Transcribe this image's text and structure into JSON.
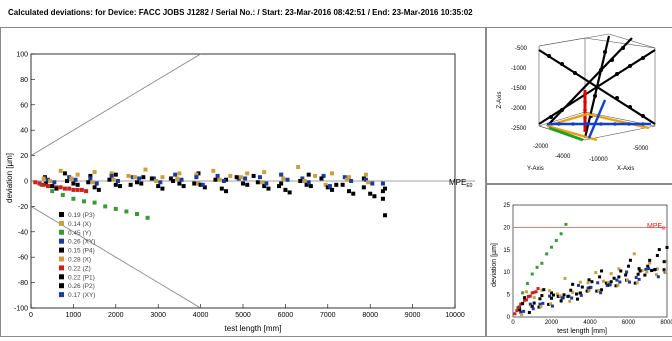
{
  "header": {
    "text": "Calculated deviations:  for Device:  FACC JOBS J1282 / Serial No.:  / Start:  23-Mar-2016 08:42:51 / End:  23-Mar-2016 10:35:02"
  },
  "chart_data": [
    {
      "type": "scatter",
      "xlabel": "test length [mm]",
      "ylabel": "deviation [µm]",
      "xlim": [
        0,
        10000
      ],
      "ylim": [
        -100,
        100
      ],
      "xticks": [
        0,
        1000,
        2000,
        3000,
        4000,
        5000,
        6000,
        7000,
        8000,
        9000,
        10000
      ],
      "yticks": [
        -100,
        -80,
        -60,
        -40,
        -20,
        0,
        20,
        40,
        60,
        80,
        100
      ],
      "grid": false,
      "legend_position": "bottom-left",
      "mpe_label": "MPE",
      "mpe_subscript": "E0",
      "mpe_lines": {
        "upper": {
          "x": [
            0,
            4000
          ],
          "y": [
            20,
            100
          ]
        },
        "lower": {
          "x": [
            0,
            4000
          ],
          "y": [
            -20,
            -100
          ]
        },
        "zero": {
          "y": 0
        }
      },
      "series": [
        {
          "name": "0.19 (P3)",
          "color": "#000000",
          "x": [
            330,
            800,
            1400,
            2000,
            2650,
            3300,
            3950,
            4600,
            5250,
            5900,
            6550,
            7200,
            7850,
            8350
          ],
          "y": [
            3,
            6,
            4,
            5,
            3,
            2,
            6,
            1,
            4,
            -2,
            5,
            -3,
            2,
            -6
          ]
        },
        {
          "name": "0.14 (X)",
          "color": "#c8a040",
          "x": [
            300,
            700,
            1100,
            1500,
            1900,
            2300,
            2700,
            3100,
            3500,
            3900,
            4300,
            4700,
            5100,
            5500,
            5900,
            6300,
            6700,
            7100,
            7500,
            7900
          ],
          "y": [
            2,
            8,
            5,
            7,
            6,
            4,
            9,
            3,
            6,
            5,
            8,
            4,
            6,
            7,
            5,
            11,
            4,
            6,
            3,
            5
          ]
        },
        {
          "name": "0.45 (Y)",
          "color": "#3a9a3a",
          "x": [
            250,
            500,
            750,
            1000,
            1250,
            1500,
            1750,
            2000,
            2250,
            2500,
            2750
          ],
          "y": [
            -3,
            -8,
            -11,
            -14,
            -16,
            -17,
            -20,
            -22,
            -24,
            -26,
            -29
          ]
        },
        {
          "name": "0.26 (XY)",
          "color": "#1a3aa0",
          "x": [
            400,
            900,
            1400,
            1900,
            2400,
            2900,
            3400,
            3900,
            4400,
            4900,
            5400,
            5900,
            6400,
            6900,
            7400,
            7900,
            8300
          ],
          "y": [
            1,
            3,
            2,
            4,
            3,
            2,
            5,
            3,
            4,
            2,
            3,
            5,
            2,
            4,
            3,
            1,
            -2
          ]
        },
        {
          "name": "0.15 (P4)",
          "color": "#000000",
          "x": [
            350,
            850,
            1350,
            1850,
            2350,
            2850,
            3350,
            3850,
            4350,
            4850,
            5350,
            5850,
            6350,
            6850,
            7350,
            7850,
            8300
          ],
          "y": [
            -2,
            0,
            -1,
            1,
            -3,
            2,
            0,
            -2,
            1,
            3,
            -1,
            -4,
            0,
            2,
            -3,
            -5,
            -8
          ]
        },
        {
          "name": "0.28 (X)",
          "color": "#c8a040",
          "x": [
            450,
            950,
            1450,
            1950,
            2450,
            2950,
            3450,
            3950,
            4450,
            4950,
            5450,
            5950,
            6450,
            6950,
            7450,
            7950
          ],
          "y": [
            0,
            2,
            -1,
            1,
            3,
            0,
            2,
            -2,
            1,
            3,
            -1,
            2,
            0,
            -3,
            1,
            -1
          ]
        },
        {
          "name": "0.22 (Z)",
          "color": "#cc2020",
          "x": [
            100,
            200,
            300,
            400,
            500,
            600,
            700,
            800,
            900,
            1000,
            1100,
            1200,
            1300
          ],
          "y": [
            -1,
            -2,
            -3,
            -4,
            -4,
            -5,
            -5,
            -6,
            -6,
            -7,
            -7,
            -7,
            -8
          ]
        },
        {
          "name": "0.22 (P1)",
          "color": "#000000",
          "x": [
            500,
            1000,
            1500,
            2000,
            2500,
            3000,
            3500,
            4000,
            4500,
            5000,
            5500,
            6000,
            6500,
            7000,
            7500,
            8000,
            8300
          ],
          "y": [
            -4,
            -2,
            -5,
            -3,
            -1,
            -4,
            -2,
            -3,
            -6,
            -2,
            -4,
            -7,
            -3,
            -5,
            -8,
            -10,
            -14
          ]
        },
        {
          "name": "0.26 (P2)",
          "color": "#000000",
          "x": [
            600,
            1100,
            1600,
            2100,
            2600,
            3100,
            3600,
            4100,
            4600,
            5100,
            5600,
            6100,
            6600,
            7100,
            7600,
            8100,
            8350
          ],
          "y": [
            -6,
            -3,
            -7,
            -4,
            -2,
            -6,
            -4,
            -5,
            -8,
            -3,
            -6,
            -9,
            -4,
            -7,
            -10,
            -12,
            -27
          ]
        },
        {
          "name": "0.17 (XY)",
          "color": "#1a3aa0",
          "x": [
            550,
            1050,
            1550,
            2050,
            2550,
            3050,
            3550,
            4050,
            4550,
            5050,
            5550,
            6050,
            6550,
            7050,
            7550,
            8050
          ],
          "y": [
            -1,
            1,
            -2,
            0,
            2,
            -1,
            1,
            -3,
            0,
            2,
            -2,
            1,
            -1,
            -4,
            0,
            -2
          ]
        }
      ]
    },
    {
      "type": "line",
      "xlabel": "X-Axis",
      "ylabel": "Y-Axis",
      "zlabel": "Z-Axis",
      "zticks": [
        -500,
        -1000,
        -1500,
        -2000,
        -2500
      ],
      "yticks": [
        -2000,
        -4000
      ],
      "xticks": [
        -5000,
        -10000
      ],
      "series": [
        {
          "name": "black diagonals",
          "color": "#000000"
        },
        {
          "name": "red vertical",
          "color": "#dd0000"
        },
        {
          "name": "orange x-lines",
          "color": "#e8a010"
        },
        {
          "name": "green y-line",
          "color": "#22a022"
        },
        {
          "name": "blue xy-line",
          "color": "#1040d0"
        }
      ]
    },
    {
      "type": "scatter",
      "xlabel": "test length [mm]",
      "ylabel": "deviation [µm]",
      "xlim": [
        0,
        8000
      ],
      "ylim": [
        0,
        25
      ],
      "xticks": [
        0,
        2000,
        4000,
        6000,
        8000
      ],
      "yticks": [
        0,
        5,
        10,
        15,
        20,
        25
      ],
      "mpe_label": "MPE",
      "mpe_subscript": "E",
      "mpe_value": 20
    }
  ]
}
